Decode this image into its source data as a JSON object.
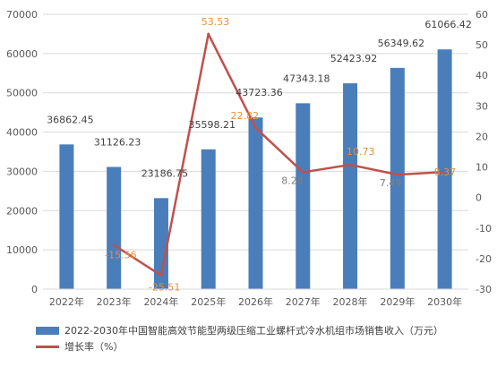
{
  "chart_data": {
    "type": "bar",
    "categories": [
      "2022年",
      "2023年",
      "2024年",
      "2025年",
      "2026年",
      "2027年",
      "2028年",
      "2029年",
      "2030年"
    ],
    "series": [
      {
        "name": "2022-2030年中国智能高效节能型两级压缩工业螺杆式冷水机组市场销售收入（万元）",
        "type": "bar",
        "axis": "left",
        "values": [
          36862.45,
          31126.23,
          23186.75,
          35598.21,
          43723.36,
          47343.18,
          52423.92,
          56349.62,
          61066.42
        ],
        "labels": [
          "36862.45",
          "31126.23",
          "23186.75",
          "35598.21",
          "43723.36",
          "47343.18",
          "52423.92",
          "56349.62",
          "61066.42"
        ]
      },
      {
        "name": "增长率（%）",
        "type": "line",
        "axis": "right",
        "values": [
          null,
          -15.56,
          -25.51,
          53.53,
          22.82,
          8.28,
          10.73,
          7.49,
          8.37
        ],
        "labels": [
          "",
          "-15.56",
          "-25.51",
          "53.53",
          "22.82",
          "8.28",
          "10.73",
          "7.49",
          "8.37"
        ]
      }
    ],
    "ylim_left": [
      0,
      70000
    ],
    "yticks_left": [
      "0",
      "10000",
      "20000",
      "30000",
      "40000",
      "50000",
      "60000",
      "70000"
    ],
    "ylim_right": [
      -30,
      60
    ],
    "yticks_right": [
      "-30",
      "-20",
      "-10",
      "0",
      "10",
      "20",
      "30",
      "40",
      "50",
      "60"
    ],
    "grid": true,
    "legend_position": "bottom",
    "colors": {
      "bar": "#4a7ebb",
      "line": "#c0504d",
      "bar_label": "#404040",
      "line_label": "#e69138",
      "axis_text": "#595959",
      "grid": "#d9d9d9"
    }
  }
}
